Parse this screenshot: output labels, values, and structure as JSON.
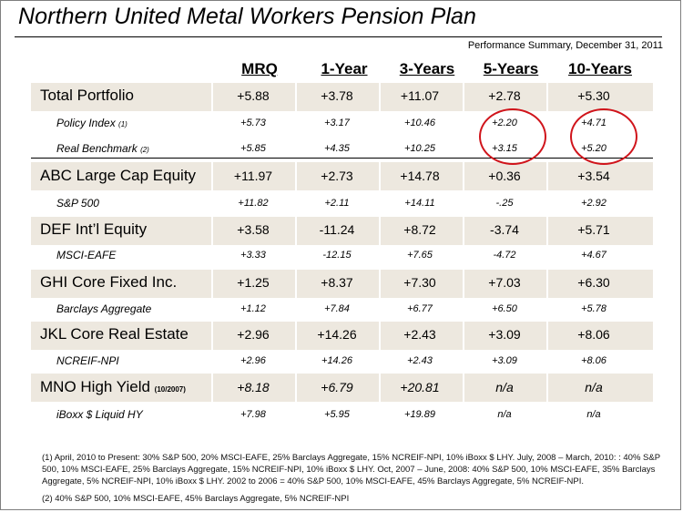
{
  "title": "Northern United Metal Workers Pension Plan",
  "subtitle": "Performance Summary, December 31, 2011",
  "columns": [
    "MRQ",
    "1-Year",
    "3-Years",
    "5-Years",
    "10-Years"
  ],
  "rows": [
    {
      "label": "Total Portfolio",
      "values": [
        "+5.88",
        "+3.78",
        "+11.07",
        "+2.78",
        "+5.30"
      ]
    },
    {
      "label": "Policy Index",
      "note": "(1)",
      "values": [
        "+5.73",
        "+3.17",
        "+10.46",
        "+2.20",
        "+4.71"
      ]
    },
    {
      "label": "Real Benchmark",
      "note": "(2)",
      "values": [
        "+5.85",
        "+4.35",
        "+10.25",
        "+3.15",
        "+5.20"
      ]
    },
    {
      "label": "ABC Large Cap Equity",
      "values": [
        "+11.97",
        "+2.73",
        "+14.78",
        "+0.36",
        "+3.54"
      ]
    },
    {
      "label": "S&P 500",
      "values": [
        "+11.82",
        "+2.11",
        "+14.11",
        "-.25",
        "+2.92"
      ]
    },
    {
      "label": "DEF Int’l Equity",
      "values": [
        "+3.58",
        "-11.24",
        "+8.72",
        "-3.74",
        "+5.71"
      ]
    },
    {
      "label": "MSCI-EAFE",
      "values": [
        "+3.33",
        "-12.15",
        "+7.65",
        "-4.72",
        "+4.67"
      ]
    },
    {
      "label": "GHI Core Fixed Inc.",
      "values": [
        "+1.25",
        "+8.37",
        "+7.30",
        "+7.03",
        "+6.30"
      ]
    },
    {
      "label": "Barclays Aggregate",
      "values": [
        "+1.12",
        "+7.84",
        "+6.77",
        "+6.50",
        "+5.78"
      ]
    },
    {
      "label": "JKL Core Real Estate",
      "values": [
        "+2.96",
        "+14.26",
        "+2.43",
        "+3.09",
        "+8.06"
      ]
    },
    {
      "label": "NCREIF-NPI",
      "values": [
        "+2.96",
        "+14.26",
        "+2.43",
        "+3.09",
        "+8.06"
      ]
    },
    {
      "label": "MNO High Yield",
      "note": "(10/2007)",
      "values": [
        "+8.18",
        "+6.79",
        "+20.81",
        "n/a",
        "n/a"
      ]
    },
    {
      "label": "iBoxx $ Liquid HY",
      "values": [
        "+7.98",
        "+5.95",
        "+19.89",
        "n/a",
        "n/a"
      ]
    }
  ],
  "footnotes": [
    "(1) April, 2010 to Present: 30% S&P 500, 20% MSCI-EAFE, 25% Barclays Aggregate, 15% NCREIF-NPI, 10% iBoxx $ LHY.  July, 2008 – March, 2010: : 40% S&P 500, 10% MSCI-EAFE, 25% Barclays Aggregate, 15% NCREIF-NPI, 10% iBoxx $ LHY.  Oct, 2007 – June, 2008: 40% S&P 500, 10% MSCI-EAFE, 35% Barclays Aggregate, 5% NCREIF-NPI, 10% iBoxx $ LHY.  2002 to 2006 = 40% S&P 500, 10% MSCI-EAFE, 45% Barclays Aggregate, 5% NCREIF-NPI.",
    "(2) 40% S&P 500, 10% MSCI-EAFE, 45% Barclays Aggregate, 5% NCREIF-NPI"
  ],
  "colors": {
    "band": "#ede8df",
    "circle": "#d0141b"
  }
}
